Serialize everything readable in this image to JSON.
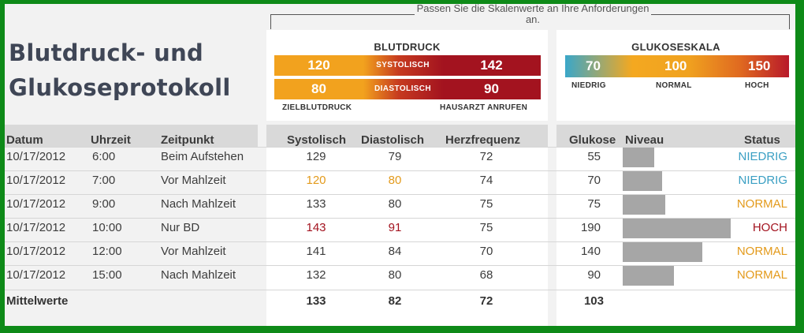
{
  "title": "Blutdruck- und Glukoseprotokoll",
  "hint": "Passen Sie die Skalenwerte an Ihre Anforderungen an.",
  "blood_pressure": {
    "title": "BLUTDRUCK",
    "systolic_label": "SYSTOLISCH",
    "diastolic_label": "DIASTOLISCH",
    "systolic_target": "120",
    "systolic_call": "142",
    "diastolic_target": "80",
    "diastolic_call": "90",
    "target_label": "ZIELBLUTDRUCK",
    "call_label": "HAUSARZT ANRUFEN",
    "color_target": "#f2a21e",
    "color_call": "#a3131f"
  },
  "glucose_scale": {
    "title": "GLUKOSESKALA",
    "low": "70",
    "normal": "100",
    "high": "150",
    "low_label": "NIEDRIG",
    "normal_label": "NORMAL",
    "high_label": "HOCH"
  },
  "columns": {
    "date": "Datum",
    "time": "Uhrzeit",
    "moment": "Zeitpunkt",
    "systolic": "Systolisch",
    "diastolic": "Diastolisch",
    "heart_rate": "Herzfrequenz",
    "glucose": "Glukose",
    "level": "Niveau",
    "status": "Status"
  },
  "rows": [
    {
      "date": "10/17/2012",
      "time": "6:00",
      "moment": "Beim Aufstehen",
      "systolic": "129",
      "diastolic": "79",
      "heart_rate": "72",
      "glucose": "55",
      "status": "NIEDRIG",
      "bp_flag": "normal"
    },
    {
      "date": "10/17/2012",
      "time": "7:00",
      "moment": "Vor Mahlzeit",
      "systolic": "120",
      "diastolic": "80",
      "heart_rate": "74",
      "glucose": "70",
      "status": "NIEDRIG",
      "bp_flag": "target"
    },
    {
      "date": "10/17/2012",
      "time": "9:00",
      "moment": "Nach Mahlzeit",
      "systolic": "133",
      "diastolic": "80",
      "heart_rate": "75",
      "glucose": "75",
      "status": "NORMAL",
      "bp_flag": "normal"
    },
    {
      "date": "10/17/2012",
      "time": "10:00",
      "moment": "Nur BD",
      "systolic": "143",
      "diastolic": "91",
      "heart_rate": "75",
      "glucose": "190",
      "status": "HOCH",
      "bp_flag": "high"
    },
    {
      "date": "10/17/2012",
      "time": "12:00",
      "moment": "Vor Mahlzeit",
      "systolic": "141",
      "diastolic": "84",
      "heart_rate": "70",
      "glucose": "140",
      "status": "NORMAL",
      "bp_flag": "normal"
    },
    {
      "date": "10/17/2012",
      "time": "15:00",
      "moment": "Nach Mahlzeit",
      "systolic": "132",
      "diastolic": "80",
      "heart_rate": "68",
      "glucose": "90",
      "status": "NORMAL",
      "bp_flag": "normal"
    }
  ],
  "status_colors": {
    "NIEDRIG": "#3a9fc3",
    "NORMAL": "#e39a1b",
    "HOCH": "#a3131f"
  },
  "footer": {
    "label": "Mittelwerte",
    "systolic": "133",
    "diastolic": "82",
    "heart_rate": "72",
    "glucose": "103"
  }
}
